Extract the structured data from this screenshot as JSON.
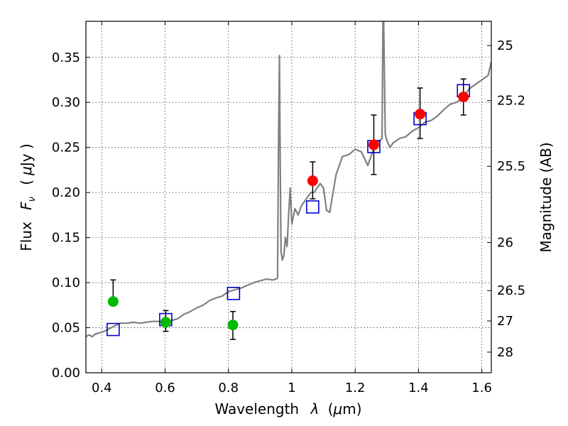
{
  "chart_data": {
    "type": "scatter",
    "xlabel_text": "Wavelength",
    "xlabel_symbol": "λ",
    "xlabel_unit_prefix": "(",
    "xlabel_unit_mu": "μ",
    "xlabel_unit_suffix": "m)",
    "ylabel_text": "Flux",
    "ylabel_symbol_F": "F",
    "ylabel_symbol_sub": "ν",
    "ylabel_unit_prefix": "(",
    "ylabel_unit_mu": "μ",
    "ylabel_unit_suffix": "Jy )",
    "y2label": "Magnitude (AB)",
    "xlim": [
      0.35,
      1.63
    ],
    "ylim": [
      0.0,
      0.39
    ],
    "grid": true,
    "xticks": [
      0.4,
      0.6,
      0.8,
      1.0,
      1.2,
      1.4,
      1.6
    ],
    "xtick_labels": [
      "0.4",
      "0.6",
      "0.8",
      "1",
      "1.2",
      "1.4",
      "1.6"
    ],
    "yticks": [
      0.0,
      0.05,
      0.1,
      0.15,
      0.2,
      0.25,
      0.3,
      0.35
    ],
    "ytick_labels": [
      "0.00",
      "0.05",
      "0.10",
      "0.15",
      "0.20",
      "0.25",
      "0.30",
      "0.35"
    ],
    "y2ticks": [
      {
        "label": "25",
        "flux": 0.3631
      },
      {
        "label": "25.2",
        "flux": 0.302
      },
      {
        "label": "25.5",
        "flux": 0.2291
      },
      {
        "label": "26",
        "flux": 0.1445
      },
      {
        "label": "26.5",
        "flux": 0.0912
      },
      {
        "label": "27",
        "flux": 0.0575
      },
      {
        "label": "28",
        "flux": 0.0229
      }
    ],
    "series": [
      {
        "kind": "line",
        "color": "#808080",
        "x": [
          0.35,
          0.36,
          0.37,
          0.38,
          0.39,
          0.4,
          0.42,
          0.44,
          0.46,
          0.48,
          0.5,
          0.52,
          0.54,
          0.56,
          0.58,
          0.6,
          0.62,
          0.64,
          0.66,
          0.68,
          0.7,
          0.72,
          0.74,
          0.76,
          0.78,
          0.8,
          0.82,
          0.84,
          0.86,
          0.88,
          0.9,
          0.92,
          0.94,
          0.95,
          0.955,
          0.958,
          0.961,
          0.963,
          0.966,
          0.97,
          0.975,
          0.98,
          0.985,
          0.99,
          0.995,
          1.0,
          1.01,
          1.02,
          1.03,
          1.04,
          1.05,
          1.06,
          1.07,
          1.08,
          1.09,
          1.1,
          1.11,
          1.12,
          1.13,
          1.14,
          1.15,
          1.16,
          1.18,
          1.2,
          1.22,
          1.24,
          1.26,
          1.27,
          1.28,
          1.285,
          1.288,
          1.29,
          1.295,
          1.3,
          1.31,
          1.32,
          1.34,
          1.36,
          1.38,
          1.4,
          1.42,
          1.44,
          1.46,
          1.48,
          1.5,
          1.52,
          1.54,
          1.56,
          1.58,
          1.6,
          1.62,
          1.63
        ],
        "y": [
          0.04,
          0.042,
          0.04,
          0.043,
          0.044,
          0.045,
          0.048,
          0.052,
          0.055,
          0.055,
          0.056,
          0.055,
          0.056,
          0.057,
          0.057,
          0.058,
          0.058,
          0.06,
          0.065,
          0.068,
          0.072,
          0.075,
          0.08,
          0.083,
          0.085,
          0.09,
          0.092,
          0.094,
          0.097,
          0.1,
          0.102,
          0.104,
          0.103,
          0.104,
          0.105,
          0.25,
          0.352,
          0.25,
          0.135,
          0.125,
          0.13,
          0.15,
          0.14,
          0.175,
          0.205,
          0.165,
          0.182,
          0.175,
          0.185,
          0.19,
          0.195,
          0.2,
          0.2,
          0.205,
          0.21,
          0.205,
          0.18,
          0.178,
          0.2,
          0.22,
          0.23,
          0.24,
          0.242,
          0.248,
          0.245,
          0.23,
          0.25,
          0.255,
          0.258,
          0.26,
          0.395,
          0.395,
          0.265,
          0.258,
          0.25,
          0.255,
          0.26,
          0.262,
          0.268,
          0.272,
          0.278,
          0.28,
          0.285,
          0.292,
          0.298,
          0.3,
          0.305,
          0.315,
          0.32,
          0.325,
          0.33,
          0.345
        ]
      },
      {
        "kind": "squares",
        "color": "#0000cc",
        "x": [
          0.436,
          0.602,
          0.816,
          1.066,
          1.259,
          1.405,
          1.542
        ],
        "y": [
          0.048,
          0.059,
          0.088,
          0.184,
          0.251,
          0.282,
          0.313
        ]
      },
      {
        "kind": "points",
        "color": "#00bb00",
        "x": [
          0.436,
          0.602,
          0.814
        ],
        "y": [
          0.079,
          0.056,
          0.053
        ],
        "yerr_low": [
          0.079,
          0.046,
          0.037
        ],
        "yerr_high": [
          0.103,
          0.069,
          0.068
        ]
      },
      {
        "kind": "points",
        "color": "#ff0000",
        "x": [
          1.066,
          1.259,
          1.405,
          1.542
        ],
        "y": [
          0.213,
          0.253,
          0.287,
          0.306
        ],
        "yerr_low": [
          0.193,
          0.22,
          0.26,
          0.286
        ],
        "yerr_high": [
          0.234,
          0.286,
          0.316,
          0.326
        ]
      }
    ]
  }
}
